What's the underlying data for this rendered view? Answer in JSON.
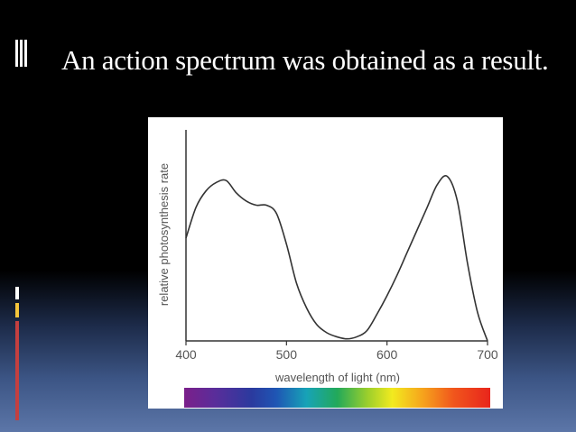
{
  "slide": {
    "title": "An action spectrum was obtained as a result.",
    "colors": {
      "background": "#000000",
      "title": "#ffffff",
      "accent_yellow": "#f5c53b",
      "accent_red": "#c43f3f"
    }
  },
  "chart_data": {
    "type": "line",
    "title": "",
    "xlabel": "wavelength of light (nm)",
    "ylabel": "relative photosynthesis rate",
    "xlim": [
      400,
      700
    ],
    "ylim": [
      0,
      1
    ],
    "xticks": [
      "400",
      "500",
      "600",
      "700"
    ],
    "grid": false,
    "legend": "none",
    "series": [
      {
        "x": [
          400,
          410,
          420,
          430,
          440,
          450,
          460,
          470,
          480,
          490,
          500,
          510,
          520,
          530,
          540,
          550,
          560,
          570,
          580,
          590,
          600,
          610,
          620,
          630,
          640,
          650,
          660,
          670,
          680,
          690,
          700
        ],
        "values": [
          0.5,
          0.65,
          0.73,
          0.77,
          0.78,
          0.72,
          0.68,
          0.66,
          0.66,
          0.62,
          0.47,
          0.28,
          0.16,
          0.08,
          0.04,
          0.02,
          0.01,
          0.02,
          0.05,
          0.13,
          0.22,
          0.32,
          0.43,
          0.54,
          0.65,
          0.76,
          0.8,
          0.68,
          0.38,
          0.14,
          0.0
        ]
      }
    ],
    "spectrum_colors": [
      "#7b1f8a",
      "#2b3a9e",
      "#17a3b7",
      "#22a95a",
      "#f2ea1f",
      "#f6a31c",
      "#e8251c"
    ]
  }
}
